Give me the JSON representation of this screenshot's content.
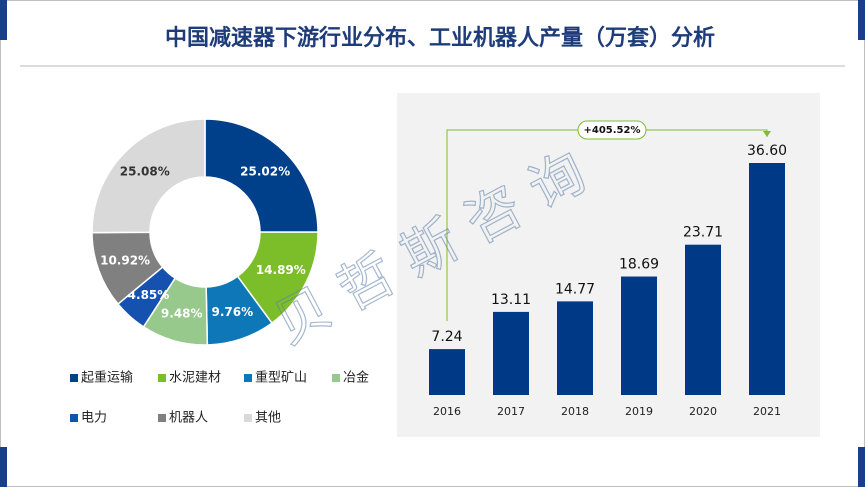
{
  "title": "中国减速器下游行业分布、工业机器人产量（万套）分析",
  "watermark": "贝哲斯咨询",
  "chart_data": [
    {
      "type": "pie",
      "categories": [
        "起重运输",
        "水泥建材",
        "重型矿山",
        "冶金",
        "电力",
        "机器人",
        "其他"
      ],
      "values": [
        25.02,
        14.89,
        9.76,
        9.48,
        4.85,
        10.92,
        25.08
      ],
      "value_labels": [
        "25.02%",
        "14.89%",
        "9.76%",
        "9.48%",
        "4.85%",
        "10.92%",
        "25.08%"
      ],
      "colors": [
        "#003f8a",
        "#7cbd2a",
        "#0e77b8",
        "#96c98b",
        "#1552b0",
        "#808080",
        "#d9d9d9"
      ]
    },
    {
      "type": "bar",
      "categories": [
        "2016",
        "2017",
        "2018",
        "2019",
        "2020",
        "2021"
      ],
      "values": [
        7.24,
        13.11,
        14.77,
        18.69,
        23.71,
        36.6
      ],
      "value_labels": [
        "7.24",
        "13.11",
        "14.77",
        "18.69",
        "23.71",
        "36.60"
      ],
      "color": "#003a86",
      "annotation": "+405.52%",
      "annotation_color": "#7cbd2a"
    }
  ]
}
